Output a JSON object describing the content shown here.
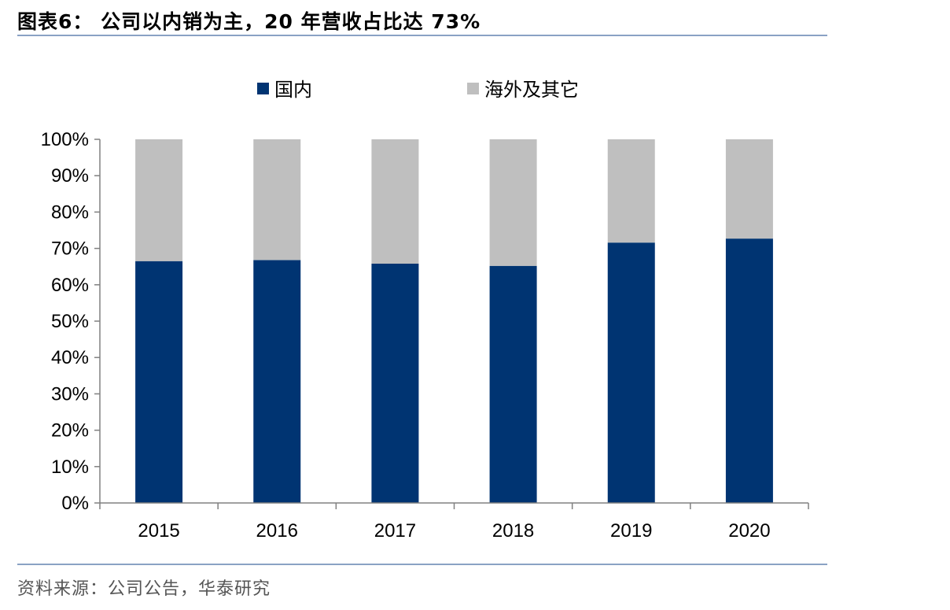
{
  "title": "图表6：  公司以内销为主，20 年营收占比达 73%",
  "source": "资料来源：公司公告，华泰研究",
  "colors": {
    "domestic": "#003472",
    "overseas": "#bfbfbf",
    "axis": "#808080",
    "rule": "#8aa2c4"
  },
  "chart_data": {
    "type": "bar",
    "stacked": true,
    "categories": [
      "2015",
      "2016",
      "2017",
      "2018",
      "2019",
      "2020"
    ],
    "series": [
      {
        "name": "国内",
        "values": [
          66.5,
          66.8,
          65.8,
          65.2,
          71.6,
          72.7
        ]
      },
      {
        "name": "海外及其它",
        "values": [
          33.5,
          33.2,
          34.2,
          34.8,
          28.4,
          27.3
        ]
      }
    ],
    "ylim": [
      0,
      100
    ],
    "yticks": [
      "0%",
      "10%",
      "20%",
      "30%",
      "40%",
      "50%",
      "60%",
      "70%",
      "80%",
      "90%",
      "100%"
    ],
    "legend": "top",
    "grid": false
  }
}
